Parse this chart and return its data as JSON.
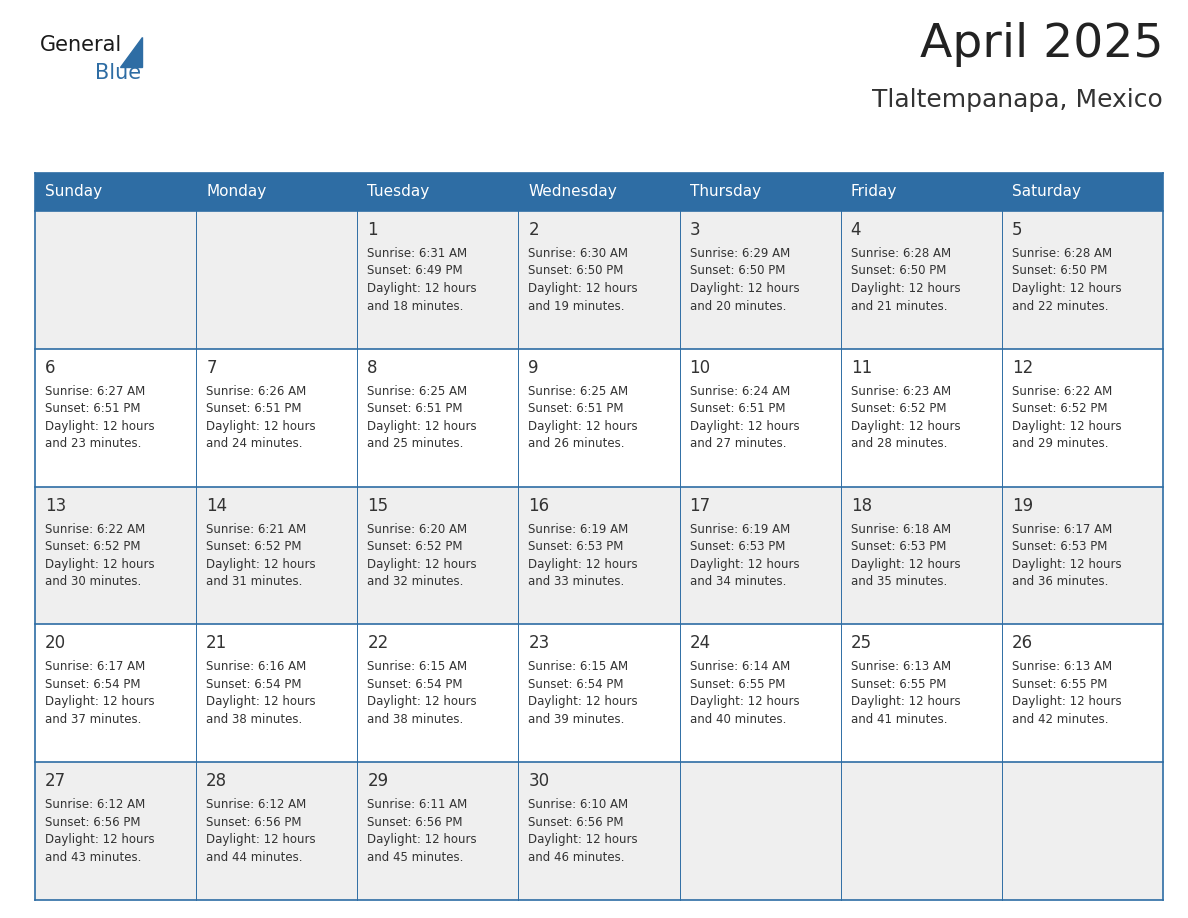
{
  "title": "April 2025",
  "subtitle": "Tlaltempanapa, Mexico",
  "header_bg": "#2E6DA4",
  "header_fg": "#FFFFFF",
  "cell_bg_light": "#EFEFEF",
  "cell_bg_white": "#FFFFFF",
  "border_color": "#2E6DA4",
  "text_color": "#333333",
  "day_headers": [
    "Sunday",
    "Monday",
    "Tuesday",
    "Wednesday",
    "Thursday",
    "Friday",
    "Saturday"
  ],
  "weeks": [
    [
      {
        "day": "",
        "info": ""
      },
      {
        "day": "",
        "info": ""
      },
      {
        "day": "1",
        "info": "Sunrise: 6:31 AM\nSunset: 6:49 PM\nDaylight: 12 hours\nand 18 minutes."
      },
      {
        "day": "2",
        "info": "Sunrise: 6:30 AM\nSunset: 6:50 PM\nDaylight: 12 hours\nand 19 minutes."
      },
      {
        "day": "3",
        "info": "Sunrise: 6:29 AM\nSunset: 6:50 PM\nDaylight: 12 hours\nand 20 minutes."
      },
      {
        "day": "4",
        "info": "Sunrise: 6:28 AM\nSunset: 6:50 PM\nDaylight: 12 hours\nand 21 minutes."
      },
      {
        "day": "5",
        "info": "Sunrise: 6:28 AM\nSunset: 6:50 PM\nDaylight: 12 hours\nand 22 minutes."
      }
    ],
    [
      {
        "day": "6",
        "info": "Sunrise: 6:27 AM\nSunset: 6:51 PM\nDaylight: 12 hours\nand 23 minutes."
      },
      {
        "day": "7",
        "info": "Sunrise: 6:26 AM\nSunset: 6:51 PM\nDaylight: 12 hours\nand 24 minutes."
      },
      {
        "day": "8",
        "info": "Sunrise: 6:25 AM\nSunset: 6:51 PM\nDaylight: 12 hours\nand 25 minutes."
      },
      {
        "day": "9",
        "info": "Sunrise: 6:25 AM\nSunset: 6:51 PM\nDaylight: 12 hours\nand 26 minutes."
      },
      {
        "day": "10",
        "info": "Sunrise: 6:24 AM\nSunset: 6:51 PM\nDaylight: 12 hours\nand 27 minutes."
      },
      {
        "day": "11",
        "info": "Sunrise: 6:23 AM\nSunset: 6:52 PM\nDaylight: 12 hours\nand 28 minutes."
      },
      {
        "day": "12",
        "info": "Sunrise: 6:22 AM\nSunset: 6:52 PM\nDaylight: 12 hours\nand 29 minutes."
      }
    ],
    [
      {
        "day": "13",
        "info": "Sunrise: 6:22 AM\nSunset: 6:52 PM\nDaylight: 12 hours\nand 30 minutes."
      },
      {
        "day": "14",
        "info": "Sunrise: 6:21 AM\nSunset: 6:52 PM\nDaylight: 12 hours\nand 31 minutes."
      },
      {
        "day": "15",
        "info": "Sunrise: 6:20 AM\nSunset: 6:52 PM\nDaylight: 12 hours\nand 32 minutes."
      },
      {
        "day": "16",
        "info": "Sunrise: 6:19 AM\nSunset: 6:53 PM\nDaylight: 12 hours\nand 33 minutes."
      },
      {
        "day": "17",
        "info": "Sunrise: 6:19 AM\nSunset: 6:53 PM\nDaylight: 12 hours\nand 34 minutes."
      },
      {
        "day": "18",
        "info": "Sunrise: 6:18 AM\nSunset: 6:53 PM\nDaylight: 12 hours\nand 35 minutes."
      },
      {
        "day": "19",
        "info": "Sunrise: 6:17 AM\nSunset: 6:53 PM\nDaylight: 12 hours\nand 36 minutes."
      }
    ],
    [
      {
        "day": "20",
        "info": "Sunrise: 6:17 AM\nSunset: 6:54 PM\nDaylight: 12 hours\nand 37 minutes."
      },
      {
        "day": "21",
        "info": "Sunrise: 6:16 AM\nSunset: 6:54 PM\nDaylight: 12 hours\nand 38 minutes."
      },
      {
        "day": "22",
        "info": "Sunrise: 6:15 AM\nSunset: 6:54 PM\nDaylight: 12 hours\nand 38 minutes."
      },
      {
        "day": "23",
        "info": "Sunrise: 6:15 AM\nSunset: 6:54 PM\nDaylight: 12 hours\nand 39 minutes."
      },
      {
        "day": "24",
        "info": "Sunrise: 6:14 AM\nSunset: 6:55 PM\nDaylight: 12 hours\nand 40 minutes."
      },
      {
        "day": "25",
        "info": "Sunrise: 6:13 AM\nSunset: 6:55 PM\nDaylight: 12 hours\nand 41 minutes."
      },
      {
        "day": "26",
        "info": "Sunrise: 6:13 AM\nSunset: 6:55 PM\nDaylight: 12 hours\nand 42 minutes."
      }
    ],
    [
      {
        "day": "27",
        "info": "Sunrise: 6:12 AM\nSunset: 6:56 PM\nDaylight: 12 hours\nand 43 minutes."
      },
      {
        "day": "28",
        "info": "Sunrise: 6:12 AM\nSunset: 6:56 PM\nDaylight: 12 hours\nand 44 minutes."
      },
      {
        "day": "29",
        "info": "Sunrise: 6:11 AM\nSunset: 6:56 PM\nDaylight: 12 hours\nand 45 minutes."
      },
      {
        "day": "30",
        "info": "Sunrise: 6:10 AM\nSunset: 6:56 PM\nDaylight: 12 hours\nand 46 minutes."
      },
      {
        "day": "",
        "info": ""
      },
      {
        "day": "",
        "info": ""
      },
      {
        "day": "",
        "info": ""
      }
    ]
  ],
  "logo_color_general": "#1a1a1a",
  "logo_color_blue": "#2E6DA4",
  "figsize": [
    11.88,
    9.18
  ],
  "dpi": 100
}
